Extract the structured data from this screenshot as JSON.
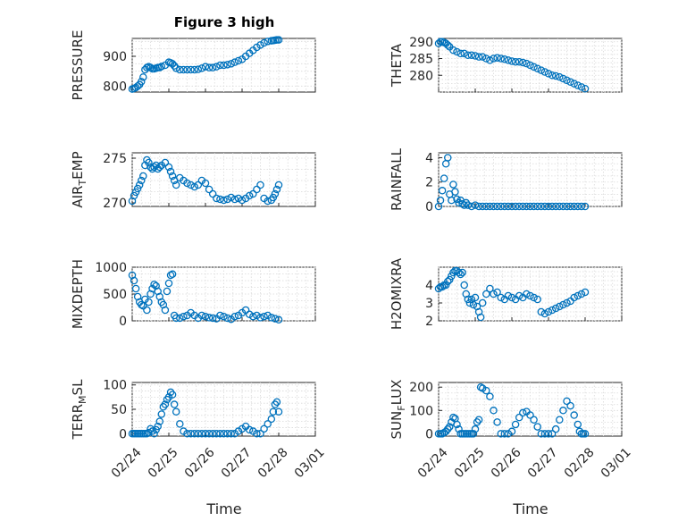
{
  "figure": {
    "title": "Figure 3 high",
    "marker_color": "#0072bd"
  },
  "chart_data": [
    {
      "id": "pressure",
      "type": "scatter",
      "ylabel": "PRESSURE",
      "xlabel": "",
      "ylim": [
        780,
        960
      ],
      "yticks": [
        800,
        900
      ],
      "xlim": [
        0,
        5
      ],
      "title": "Figure 3 high",
      "x": [
        0,
        0.05,
        0.1,
        0.15,
        0.2,
        0.25,
        0.3,
        0.35,
        0.4,
        0.45,
        0.5,
        0.55,
        0.6,
        0.65,
        0.7,
        0.75,
        0.8,
        0.9,
        1.0,
        1.05,
        1.1,
        1.15,
        1.2,
        1.3,
        1.4,
        1.5,
        1.6,
        1.7,
        1.8,
        1.9,
        2.0,
        2.1,
        2.2,
        2.3,
        2.4,
        2.5,
        2.6,
        2.7,
        2.8,
        2.9,
        3.0,
        3.1,
        3.2,
        3.3,
        3.4,
        3.5,
        3.6,
        3.7,
        3.8,
        3.85,
        3.9,
        3.95,
        4.0
      ],
      "y": [
        790,
        792,
        795,
        800,
        805,
        815,
        830,
        855,
        862,
        865,
        862,
        858,
        858,
        860,
        862,
        862,
        866,
        870,
        880,
        878,
        875,
        868,
        860,
        855,
        855,
        855,
        855,
        855,
        856,
        860,
        865,
        862,
        862,
        865,
        870,
        870,
        872,
        875,
        880,
        885,
        890,
        900,
        910,
        920,
        930,
        938,
        945,
        950,
        952,
        953,
        954,
        955,
        955
      ]
    },
    {
      "id": "theta",
      "type": "scatter",
      "ylabel": "THETA",
      "xlabel": "",
      "ylim": [
        275,
        291
      ],
      "yticks": [
        280,
        285,
        290
      ],
      "xlim": [
        0,
        5
      ],
      "x": [
        0,
        0.05,
        0.1,
        0.15,
        0.2,
        0.25,
        0.3,
        0.4,
        0.5,
        0.6,
        0.7,
        0.8,
        0.9,
        1.0,
        1.1,
        1.2,
        1.3,
        1.4,
        1.5,
        1.6,
        1.7,
        1.8,
        1.9,
        2.0,
        2.1,
        2.2,
        2.3,
        2.4,
        2.5,
        2.6,
        2.7,
        2.8,
        2.9,
        3.0,
        3.1,
        3.2,
        3.3,
        3.4,
        3.5,
        3.6,
        3.7,
        3.8,
        3.9,
        4.0
      ],
      "y": [
        289.5,
        290,
        290,
        289.8,
        289.5,
        289,
        288.5,
        287.5,
        287,
        286.5,
        286.5,
        286,
        286,
        285.8,
        285.5,
        285.5,
        285,
        284.5,
        285,
        285.2,
        285,
        284.8,
        284.5,
        284.2,
        284,
        284,
        283.8,
        283.5,
        283,
        282.5,
        282,
        281.5,
        281,
        280.5,
        280,
        279.8,
        279.5,
        279,
        278.5,
        278,
        277.5,
        277,
        276.5,
        276
      ]
    },
    {
      "id": "air_temp",
      "type": "scatter",
      "ylabel": "AIR_TEMP",
      "xlabel": "",
      "ylim": [
        269.6,
        275.6
      ],
      "yticks": [
        270,
        275
      ],
      "xlim": [
        0,
        5
      ],
      "x": [
        0,
        0.05,
        0.1,
        0.15,
        0.2,
        0.25,
        0.3,
        0.35,
        0.4,
        0.45,
        0.5,
        0.55,
        0.6,
        0.65,
        0.7,
        0.75,
        0.8,
        0.9,
        1.0,
        1.05,
        1.1,
        1.15,
        1.2,
        1.3,
        1.4,
        1.5,
        1.6,
        1.7,
        1.8,
        1.9,
        2.0,
        2.1,
        2.2,
        2.3,
        2.4,
        2.5,
        2.6,
        2.7,
        2.8,
        2.9,
        3.0,
        3.1,
        3.2,
        3.3,
        3.4,
        3.5,
        3.6,
        3.7,
        3.8,
        3.85,
        3.9,
        3.95,
        4.0
      ],
      "y": [
        270.2,
        270.8,
        271.2,
        271.6,
        272.0,
        272.5,
        273.0,
        274.2,
        274.8,
        274.5,
        274.0,
        273.8,
        274.0,
        274.2,
        273.8,
        274.0,
        274.2,
        274.5,
        274.0,
        273.5,
        273.0,
        272.5,
        272.0,
        272.8,
        272.5,
        272.2,
        272.0,
        271.8,
        272.0,
        272.5,
        272.2,
        271.5,
        271.0,
        270.5,
        270.4,
        270.3,
        270.4,
        270.6,
        270.4,
        270.5,
        270.3,
        270.5,
        270.8,
        271.0,
        271.5,
        272.0,
        270.5,
        270.2,
        270.3,
        270.6,
        271.0,
        271.5,
        272.0
      ]
    },
    {
      "id": "rainfall",
      "type": "scatter",
      "ylabel": "RAINFALL",
      "xlabel": "",
      "ylim": [
        0,
        4.4
      ],
      "yticks": [
        0,
        2,
        4
      ],
      "xlim": [
        0,
        5
      ],
      "x": [
        0,
        0.05,
        0.1,
        0.15,
        0.2,
        0.25,
        0.3,
        0.35,
        0.4,
        0.45,
        0.5,
        0.55,
        0.6,
        0.65,
        0.7,
        0.75,
        0.8,
        0.9,
        1.0,
        1.1,
        1.2,
        1.3,
        1.4,
        1.5,
        1.6,
        1.7,
        1.8,
        1.9,
        2.0,
        2.1,
        2.2,
        2.3,
        2.4,
        2.5,
        2.6,
        2.7,
        2.8,
        2.9,
        3.0,
        3.1,
        3.2,
        3.3,
        3.4,
        3.5,
        3.6,
        3.7,
        3.8,
        3.9,
        4.0
      ],
      "y": [
        0,
        0.5,
        1.3,
        2.3,
        3.5,
        4.0,
        1.0,
        0.5,
        1.8,
        1.2,
        0.6,
        0.3,
        0.5,
        0.2,
        0.1,
        0.3,
        0.1,
        0,
        0.1,
        0,
        0,
        0,
        0,
        0,
        0,
        0,
        0,
        0,
        0,
        0,
        0,
        0,
        0,
        0,
        0,
        0,
        0,
        0,
        0,
        0,
        0,
        0,
        0,
        0,
        0,
        0,
        0,
        0,
        0
      ]
    },
    {
      "id": "mixdepth",
      "type": "scatter",
      "ylabel": "MIXDEPTH",
      "xlabel": "",
      "ylim": [
        0,
        1000
      ],
      "yticks": [
        0,
        500,
        1000
      ],
      "xlim": [
        0,
        5
      ],
      "x": [
        0,
        0.05,
        0.1,
        0.15,
        0.2,
        0.25,
        0.3,
        0.35,
        0.4,
        0.45,
        0.5,
        0.55,
        0.6,
        0.65,
        0.7,
        0.75,
        0.8,
        0.85,
        0.9,
        0.95,
        1.0,
        1.05,
        1.1,
        1.15,
        1.2,
        1.3,
        1.4,
        1.5,
        1.6,
        1.7,
        1.8,
        1.9,
        2.0,
        2.1,
        2.2,
        2.3,
        2.4,
        2.5,
        2.6,
        2.7,
        2.8,
        2.9,
        3.0,
        3.1,
        3.2,
        3.3,
        3.4,
        3.5,
        3.6,
        3.7,
        3.8,
        3.9,
        4.0
      ],
      "y": [
        850,
        750,
        600,
        450,
        350,
        300,
        280,
        400,
        200,
        350,
        500,
        600,
        680,
        650,
        550,
        450,
        350,
        300,
        200,
        550,
        700,
        850,
        870,
        100,
        50,
        50,
        80,
        100,
        150,
        100,
        50,
        100,
        80,
        60,
        50,
        40,
        100,
        80,
        50,
        30,
        80,
        100,
        150,
        200,
        120,
        80,
        100,
        60,
        80,
        100,
        60,
        40,
        20
      ]
    },
    {
      "id": "h2omixra",
      "type": "scatter",
      "ylabel": "H2OMIXRA",
      "xlabel": "",
      "ylim": [
        2,
        5
      ],
      "yticks": [
        2,
        3,
        4
      ],
      "xlim": [
        0,
        5
      ],
      "x": [
        0,
        0.05,
        0.1,
        0.15,
        0.2,
        0.25,
        0.3,
        0.35,
        0.4,
        0.45,
        0.5,
        0.55,
        0.6,
        0.65,
        0.7,
        0.75,
        0.8,
        0.85,
        0.9,
        0.95,
        1.0,
        1.05,
        1.1,
        1.15,
        1.2,
        1.3,
        1.4,
        1.5,
        1.6,
        1.7,
        1.8,
        1.9,
        2.0,
        2.1,
        2.2,
        2.3,
        2.4,
        2.5,
        2.6,
        2.7,
        2.8,
        2.9,
        3.0,
        3.1,
        3.2,
        3.3,
        3.4,
        3.5,
        3.6,
        3.7,
        3.8,
        3.9,
        4.0
      ],
      "y": [
        3.8,
        3.9,
        3.9,
        4.0,
        4.0,
        4.2,
        4.3,
        4.5,
        4.7,
        4.8,
        4.8,
        4.7,
        4.6,
        4.7,
        4.0,
        3.5,
        3.2,
        3.0,
        3.2,
        2.9,
        3.3,
        2.8,
        2.5,
        2.2,
        3.0,
        3.5,
        3.8,
        3.5,
        3.6,
        3.3,
        3.2,
        3.4,
        3.3,
        3.2,
        3.4,
        3.3,
        3.5,
        3.4,
        3.3,
        3.2,
        2.5,
        2.4,
        2.5,
        2.6,
        2.7,
        2.8,
        2.9,
        3.0,
        3.1,
        3.3,
        3.4,
        3.5,
        3.6
      ]
    },
    {
      "id": "terr_msl",
      "type": "scatter",
      "ylabel": "TERR_MSL",
      "xlabel": "Time",
      "ylim": [
        -5,
        105
      ],
      "yticks": [
        0,
        50,
        100
      ],
      "xlim": [
        0,
        5
      ],
      "xticks": [
        "02/24",
        "02/25",
        "02/26",
        "02/27",
        "02/28",
        "03/01"
      ],
      "x": [
        0,
        0.05,
        0.1,
        0.15,
        0.2,
        0.25,
        0.3,
        0.35,
        0.4,
        0.45,
        0.5,
        0.55,
        0.6,
        0.65,
        0.7,
        0.75,
        0.8,
        0.85,
        0.9,
        0.95,
        1.0,
        1.05,
        1.1,
        1.15,
        1.2,
        1.3,
        1.4,
        1.5,
        1.6,
        1.7,
        1.8,
        1.9,
        2.0,
        2.1,
        2.2,
        2.3,
        2.4,
        2.5,
        2.6,
        2.7,
        2.8,
        2.9,
        3.0,
        3.1,
        3.2,
        3.3,
        3.4,
        3.5,
        3.6,
        3.7,
        3.8,
        3.85,
        3.9,
        3.95,
        4.0
      ],
      "y": [
        0,
        0,
        0,
        0,
        0,
        0,
        0,
        0,
        0,
        2,
        10,
        5,
        0,
        8,
        15,
        25,
        40,
        55,
        60,
        70,
        75,
        85,
        80,
        60,
        45,
        20,
        5,
        0,
        0,
        0,
        0,
        0,
        0,
        0,
        0,
        0,
        0,
        0,
        0,
        0,
        0,
        5,
        10,
        15,
        8,
        5,
        0,
        0,
        10,
        20,
        30,
        45,
        60,
        65,
        45
      ]
    },
    {
      "id": "sun_flux",
      "type": "scatter",
      "ylabel": "SUN_FLUX",
      "xlabel": "Time",
      "ylim": [
        -10,
        220
      ],
      "yticks": [
        0,
        100,
        200
      ],
      "xlim": [
        0,
        5
      ],
      "xticks": [
        "02/24",
        "02/25",
        "02/26",
        "02/27",
        "02/28",
        "03/01"
      ],
      "x": [
        0,
        0.05,
        0.1,
        0.15,
        0.2,
        0.25,
        0.3,
        0.35,
        0.4,
        0.45,
        0.5,
        0.55,
        0.6,
        0.65,
        0.7,
        0.75,
        0.8,
        0.85,
        0.9,
        0.95,
        1.0,
        1.05,
        1.1,
        1.15,
        1.2,
        1.3,
        1.4,
        1.5,
        1.6,
        1.7,
        1.8,
        1.9,
        2.0,
        2.1,
        2.2,
        2.3,
        2.4,
        2.5,
        2.6,
        2.7,
        2.8,
        2.9,
        3.0,
        3.1,
        3.2,
        3.3,
        3.4,
        3.5,
        3.6,
        3.7,
        3.8,
        3.85,
        3.9,
        3.95,
        4.0
      ],
      "y": [
        0,
        0,
        0,
        5,
        10,
        20,
        30,
        50,
        70,
        65,
        40,
        20,
        0,
        0,
        0,
        0,
        0,
        0,
        0,
        0,
        20,
        50,
        60,
        200,
        195,
        185,
        160,
        100,
        50,
        0,
        0,
        0,
        10,
        40,
        70,
        90,
        95,
        80,
        60,
        30,
        0,
        0,
        0,
        0,
        20,
        60,
        100,
        140,
        120,
        80,
        40,
        10,
        0,
        0,
        0
      ]
    }
  ]
}
